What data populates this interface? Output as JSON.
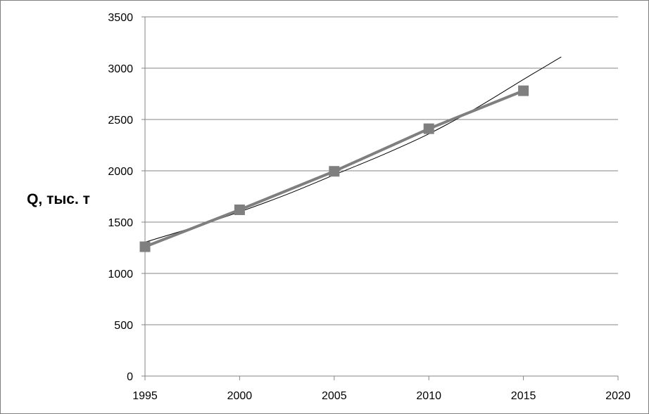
{
  "chart_data": {
    "type": "line",
    "title": "",
    "xlabel": "",
    "ylabel": "Q, тыс. т",
    "xlim": [
      1995,
      2020
    ],
    "ylim": [
      0,
      3500
    ],
    "xticks": [
      1995,
      2000,
      2005,
      2010,
      2015,
      2020
    ],
    "yticks": [
      0,
      500,
      1000,
      1500,
      2000,
      2500,
      3000,
      3500
    ],
    "grid": "horizontal",
    "legend": "none",
    "series": [
      {
        "kind": "data",
        "color": "#7f7f7f",
        "marker": "square",
        "x": [
          1995,
          2000,
          2005,
          2010,
          2015
        ],
        "y": [
          1260,
          1620,
          1995,
          2410,
          2780
        ]
      },
      {
        "kind": "trendline",
        "color": "#000000",
        "x": [
          1995,
          1997.5,
          2000,
          2002.5,
          2005,
          2007.5,
          2010,
          2012.5,
          2015,
          2017
        ],
        "y": [
          1305,
          1445,
          1600,
          1770,
          1960,
          2150,
          2360,
          2610,
          2890,
          3110
        ]
      }
    ]
  }
}
